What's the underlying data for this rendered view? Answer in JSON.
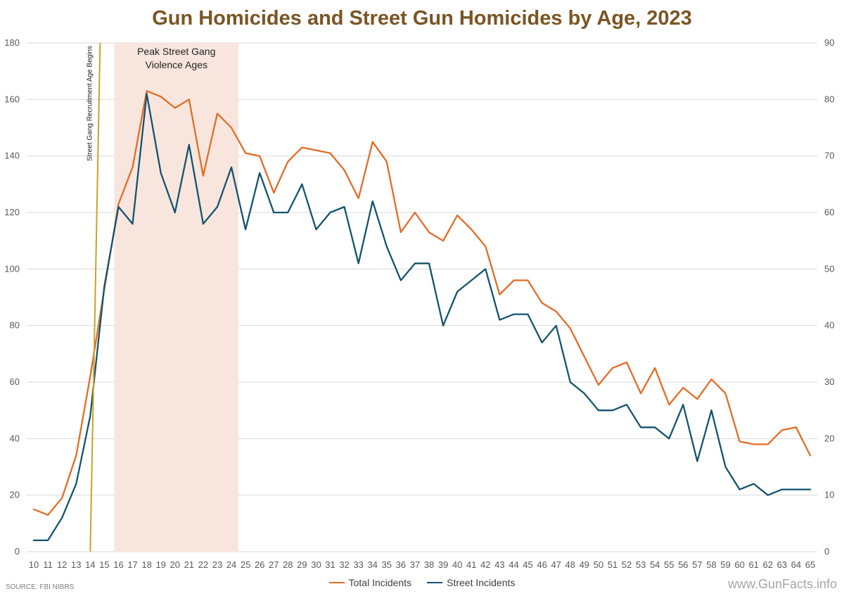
{
  "chart_data": {
    "type": "line",
    "title": "Gun Homicides and Street Gun Homicides by Age, 2023",
    "x": [
      10,
      11,
      12,
      13,
      14,
      15,
      16,
      17,
      18,
      19,
      20,
      21,
      22,
      23,
      24,
      25,
      26,
      27,
      28,
      29,
      30,
      31,
      32,
      33,
      34,
      35,
      36,
      37,
      38,
      39,
      40,
      41,
      42,
      43,
      44,
      45,
      46,
      47,
      48,
      49,
      50,
      51,
      52,
      53,
      54,
      55,
      56,
      57,
      58,
      59,
      60,
      61,
      62,
      63,
      64,
      65
    ],
    "series": [
      {
        "name": "Total Incidents",
        "axis": "left",
        "color": "#e46c24",
        "values": [
          15,
          13,
          19,
          34,
          62,
          93,
          123,
          136,
          163,
          161,
          157,
          160,
          133,
          155,
          150,
          141,
          140,
          127,
          138,
          143,
          142,
          141,
          135,
          125,
          145,
          138,
          113,
          120,
          113,
          110,
          119,
          114,
          108,
          91,
          96,
          96,
          88,
          85,
          79,
          69,
          59,
          65,
          67,
          56,
          65,
          52,
          58,
          54,
          61,
          56,
          39,
          38,
          38,
          43,
          44,
          34
        ]
      },
      {
        "name": "Street Incidents",
        "axis": "right",
        "color": "#14536e",
        "values": [
          2,
          2,
          6,
          12,
          24,
          47,
          61,
          58,
          81,
          67,
          60,
          72,
          58,
          61,
          68,
          57,
          67,
          60,
          60,
          65,
          57,
          60,
          61,
          51,
          62,
          54,
          48,
          51,
          51,
          40,
          46,
          48,
          50,
          41,
          42,
          42,
          37,
          40,
          30,
          28,
          25,
          25,
          26,
          22,
          22,
          20,
          26,
          16,
          25,
          15,
          11,
          12,
          10,
          11,
          11,
          11
        ]
      }
    ],
    "y_left": {
      "min": 0,
      "max": 180,
      "ticks": [
        0,
        20,
        40,
        60,
        80,
        100,
        120,
        140,
        160,
        180
      ]
    },
    "y_right": {
      "min": 0,
      "max": 90,
      "ticks": [
        0,
        10,
        20,
        30,
        40,
        50,
        60,
        70,
        80,
        90
      ]
    },
    "grid": true,
    "legend_position": "bottom",
    "annotations": {
      "shaded_region": {
        "label_line1": "Peak Street Gang",
        "label_line2": "Violence Ages",
        "x_start": 15.7,
        "x_end": 24.5,
        "color": "#f8e6de"
      },
      "recruitment_line": {
        "label": "Street Gang Recruitment Age Begins",
        "x_start": 14,
        "x_end": 14.7,
        "color": "#c9a227"
      }
    },
    "source": "SOURCE: FBI NIBRS",
    "watermark": "www.GunFacts.info"
  }
}
